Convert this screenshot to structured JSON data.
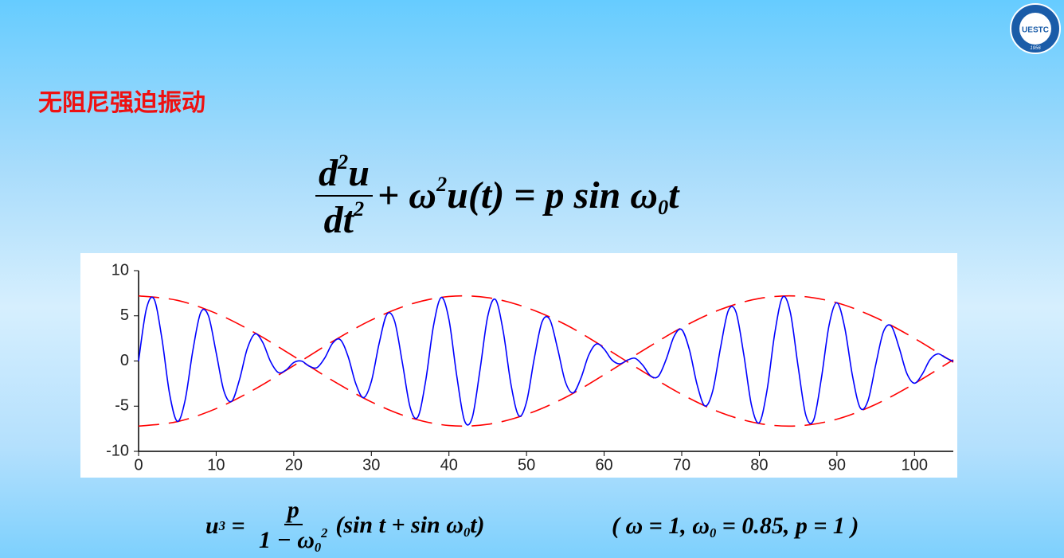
{
  "header": {
    "title": "无阻尼强迫振动",
    "logo": {
      "text": "UESTC",
      "year": "1956"
    }
  },
  "equation_1": {
    "numerator": [
      {
        "t": "d",
        "pos": "base"
      },
      {
        "t": "2",
        "pos": "sup"
      },
      {
        "t": "u",
        "pos": "base"
      }
    ],
    "denominator": [
      {
        "t": "dt",
        "pos": "base"
      },
      {
        "t": "2",
        "pos": "sup"
      }
    ],
    "rest": [
      {
        "t": "+ ω",
        "pos": "base"
      },
      {
        "t": "2",
        "pos": "sup"
      },
      {
        "t": "u(t) = p sin ω",
        "pos": "base"
      },
      {
        "t": "0",
        "pos": "sub"
      },
      {
        "t": "t",
        "pos": "base"
      }
    ]
  },
  "equation_2": {
    "lead": [
      {
        "t": "u",
        "pos": "base"
      },
      {
        "t": "3",
        "pos": "sub"
      },
      {
        "t": " = ",
        "pos": "base"
      }
    ],
    "numerator": [
      {
        "t": "p",
        "pos": "base"
      }
    ],
    "denominator": [
      {
        "t": "1 − ω",
        "pos": "base"
      },
      {
        "t": "0",
        "pos": "sub"
      },
      {
        "t": "2",
        "pos": "sup"
      }
    ],
    "rest": [
      {
        "t": "(sin t + sin ω",
        "pos": "base"
      },
      {
        "t": "0",
        "pos": "sub"
      },
      {
        "t": "t)",
        "pos": "base"
      }
    ]
  },
  "equation_3": {
    "rest": [
      {
        "t": "( ω = 1, ω",
        "pos": "base"
      },
      {
        "t": "0",
        "pos": "sub"
      },
      {
        "t": " = 0.85, p = 1 )",
        "pos": "base"
      }
    ]
  },
  "chart_data": {
    "type": "line",
    "xlim": [
      0,
      105
    ],
    "ylim": [
      -10,
      10
    ],
    "xticks": [
      0,
      10,
      20,
      30,
      40,
      50,
      60,
      70,
      80,
      90,
      100
    ],
    "yticks": [
      -10,
      -5,
      0,
      5,
      10
    ],
    "series": [
      {
        "color": "#0000ff",
        "dashed": false,
        "x": [
          0,
          1,
          2,
          3,
          4,
          5,
          6,
          7,
          8,
          9,
          10,
          11,
          12,
          13,
          14,
          15,
          16,
          17,
          18,
          19,
          20,
          21,
          22,
          23,
          24,
          25,
          26,
          27,
          28,
          29,
          30,
          31,
          32,
          33,
          34,
          35,
          36,
          37,
          38,
          39,
          40,
          41,
          42,
          43,
          44,
          45,
          46,
          47,
          48,
          49,
          50,
          51,
          52,
          53,
          54,
          55,
          56,
          57,
          58,
          59,
          60,
          61,
          62,
          63,
          64,
          65,
          66,
          67,
          68,
          69,
          70,
          71,
          72,
          73,
          74,
          75,
          76,
          77,
          78,
          79,
          80,
          81,
          82,
          83,
          84,
          85,
          86,
          87,
          88,
          89,
          90,
          91,
          92,
          93,
          94,
          95,
          96,
          97,
          98,
          99,
          100,
          101,
          102,
          103,
          104,
          105
        ],
        "values": [
          0,
          5.74,
          6.85,
          2.52,
          -3.65,
          -6.68,
          -4.34,
          1.19,
          5.35,
          5.01,
          0.92,
          -3.33,
          -4.46,
          -2.08,
          1.34,
          3.0,
          2.06,
          -0.04,
          -1.27,
          -1.0,
          -0.17,
          -0.01,
          -0.57,
          -0.73,
          0.34,
          1.96,
          2.36,
          0.5,
          -2.53,
          -4.06,
          -2.27,
          1.93,
          5.16,
          4.4,
          -0.21,
          -5.13,
          -6.19,
          -2.2,
          3.85,
          7.03,
          4.59,
          -1.61,
          -6.59,
          -6.28,
          -1.0,
          4.95,
          6.8,
          3.25,
          -2.62,
          -6.05,
          -4.53,
          0.29,
          4.33,
          4.58,
          1.38,
          -2.29,
          -3.53,
          -1.92,
          0.62,
          1.88,
          1.32,
          0.12,
          -0.32,
          0.09,
          0.3,
          -0.49,
          -1.66,
          -1.68,
          0.19,
          2.7,
          3.47,
          1.21,
          -2.68,
          -4.98,
          -3.3,
          1.47,
          5.57,
          5.4,
          0.7,
          -4.93,
          -6.82,
          -3.21,
          3.12,
          7.06,
          5.37,
          -0.61,
          -6.02,
          -6.54,
          -1.91,
          4.0,
          6.44,
          3.73,
          -1.61,
          -5.18,
          -4.41,
          -0.43,
          3.25,
          3.87,
          1.53,
          -1.35,
          -2.46,
          -1.46,
          0.15,
          0.79,
          0.36,
          -0.04
        ]
      },
      {
        "color": "#ff0000",
        "dashed": true,
        "x": [
          0,
          5,
          10,
          15,
          20,
          25,
          30,
          35,
          40,
          45,
          50,
          55,
          60,
          65,
          70,
          75,
          80,
          85,
          90,
          95,
          100,
          105
        ],
        "values": [
          7.21,
          6.71,
          5.27,
          3.11,
          0.51,
          -2.16,
          -4.53,
          -6.27,
          -7.14,
          -7.01,
          -5.91,
          -4.04,
          -1.52,
          1.16,
          3.69,
          5.7,
          6.92,
          7.18,
          6.44,
          4.8,
          2.5,
          -0.14
        ]
      },
      {
        "color": "#ff0000",
        "dashed": true,
        "x": [
          0,
          5,
          10,
          15,
          20,
          25,
          30,
          35,
          40,
          45,
          50,
          55,
          60,
          65,
          70,
          75,
          80,
          85,
          90,
          95,
          100,
          105
        ],
        "values": [
          -7.21,
          -6.71,
          -5.27,
          -3.11,
          -0.51,
          2.16,
          4.53,
          6.27,
          7.14,
          7.01,
          5.91,
          4.04,
          1.52,
          -1.16,
          -3.69,
          -5.7,
          -6.92,
          -7.18,
          -6.44,
          -4.8,
          -2.5,
          0.14
        ]
      }
    ]
  }
}
